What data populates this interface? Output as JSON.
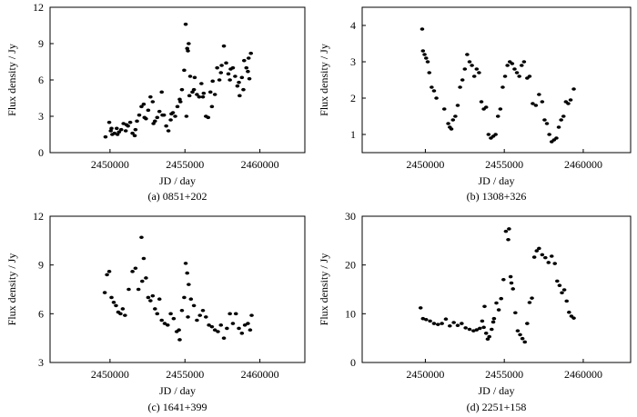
{
  "chart_data": [
    {
      "type": "scatter",
      "panel": "a",
      "caption": "(a) 0851+202",
      "xlabel": "JD / day",
      "ylabel": "Flux density / Jy",
      "xlim": [
        2446000,
        2463000
      ],
      "ylim": [
        0,
        12
      ],
      "xticks": [
        2450000,
        2455000,
        2460000
      ],
      "xtick_labels": [
        "2450000",
        "2455000",
        "2460000"
      ],
      "yticks": [
        0,
        3,
        6,
        9,
        12
      ],
      "ytick_labels": [
        "0",
        "3",
        "6",
        "9",
        "12"
      ],
      "x": [
        2449700,
        2449950,
        2450050,
        2450150,
        2450300,
        2450450,
        2450600,
        2450750,
        2450900,
        2451050,
        2451200,
        2451350,
        2451500,
        2451650,
        2451800,
        2451950,
        2452100,
        2452250,
        2452400,
        2452550,
        2452700,
        2452850,
        2453000,
        2453150,
        2453300,
        2453450,
        2453600,
        2453750,
        2453900,
        2454050,
        2454200,
        2454350,
        2454500,
        2454650,
        2454800,
        2454950,
        2455050,
        2455150,
        2455250,
        2455350,
        2455500,
        2455650,
        2455800,
        2455950,
        2456100,
        2456250,
        2456400,
        2456550,
        2456700,
        2456850,
        2457000,
        2457150,
        2457300,
        2457450,
        2457600,
        2457750,
        2457900,
        2458050,
        2458200,
        2458350,
        2458500,
        2458650,
        2458800,
        2458950,
        2459100,
        2459250,
        2459400,
        2450100,
        2450500,
        2451100,
        2451700,
        2452300,
        2452900,
        2453500,
        2454100,
        2454700,
        2455100,
        2455600,
        2456200,
        2456800,
        2457400,
        2458000,
        2458600,
        2459200,
        2459300,
        2458900,
        2455200,
        2455300
      ],
      "values": [
        1.3,
        2.5,
        1.8,
        1.5,
        1.6,
        2.0,
        1.7,
        1.9,
        2.4,
        1.8,
        2.2,
        2.5,
        1.6,
        1.4,
        2.6,
        3.1,
        3.8,
        4.0,
        2.8,
        3.5,
        4.6,
        4.2,
        2.6,
        2.9,
        3.4,
        5.0,
        3.1,
        2.2,
        1.8,
        2.7,
        3.3,
        3.0,
        3.8,
        4.4,
        5.2,
        6.8,
        10.6,
        8.6,
        9.0,
        6.3,
        5.0,
        6.2,
        4.8,
        4.6,
        5.7,
        4.9,
        3.0,
        2.9,
        5.0,
        5.9,
        4.8,
        7.0,
        6.0,
        7.2,
        8.8,
        7.4,
        6.5,
        6.9,
        7.0,
        6.3,
        5.5,
        4.7,
        6.2,
        7.6,
        7.0,
        7.8,
        8.2,
        2.0,
        1.5,
        2.3,
        1.9,
        2.9,
        2.4,
        3.1,
        3.2,
        4.2,
        3.0,
        5.2,
        4.6,
        3.8,
        6.6,
        6.0,
        5.8,
        6.7,
        6.1,
        5.2,
        8.4,
        4.7
      ]
    },
    {
      "type": "scatter",
      "panel": "b",
      "caption": "(b) 1308+326",
      "xlabel": "JD / day",
      "ylabel": "Flux density / Jy",
      "xlim": [
        2446000,
        2463000
      ],
      "ylim": [
        0.5,
        4.5
      ],
      "xticks": [
        2450000,
        2455000,
        2460000
      ],
      "xtick_labels": [
        "2450000",
        "2455000",
        "2460000"
      ],
      "yticks": [
        1,
        2,
        3,
        4
      ],
      "ytick_labels": [
        "1",
        "2",
        "3",
        "4"
      ],
      "x": [
        2449800,
        2449850,
        2449950,
        2450050,
        2450150,
        2450250,
        2450400,
        2450550,
        2450700,
        2451200,
        2451450,
        2451550,
        2451650,
        2451750,
        2451900,
        2452050,
        2452200,
        2452350,
        2452500,
        2452650,
        2452800,
        2452950,
        2453100,
        2453250,
        2453400,
        2453550,
        2453700,
        2453850,
        2454000,
        2454150,
        2454300,
        2454450,
        2454600,
        2454750,
        2454900,
        2455050,
        2455200,
        2455350,
        2455500,
        2455650,
        2455800,
        2455950,
        2456100,
        2456250,
        2456450,
        2456600,
        2456800,
        2457000,
        2457200,
        2457400,
        2457550,
        2457700,
        2457850,
        2458000,
        2458150,
        2458300,
        2458450,
        2458600,
        2458750,
        2458900,
        2459050,
        2459200,
        2459400
      ],
      "values": [
        3.9,
        3.3,
        3.2,
        3.1,
        3.0,
        2.7,
        2.3,
        2.2,
        2.0,
        1.7,
        1.3,
        1.2,
        1.15,
        1.4,
        1.5,
        1.8,
        2.3,
        2.5,
        2.8,
        3.2,
        3.0,
        2.9,
        2.6,
        2.8,
        2.7,
        1.9,
        1.7,
        1.75,
        1.0,
        0.9,
        0.95,
        1.0,
        1.5,
        1.7,
        2.3,
        2.6,
        2.9,
        3.0,
        2.95,
        2.8,
        2.7,
        2.6,
        2.9,
        3.0,
        2.55,
        2.6,
        1.85,
        1.8,
        2.1,
        1.9,
        1.4,
        1.3,
        1.0,
        0.8,
        0.85,
        0.9,
        1.2,
        1.4,
        1.5,
        1.9,
        1.85,
        1.95,
        2.25
      ]
    },
    {
      "type": "scatter",
      "panel": "c",
      "caption": "(c) 1641+399",
      "xlabel": "JD / day",
      "ylabel": "Flux density / Jy",
      "xlim": [
        2446000,
        2463000
      ],
      "ylim": [
        3,
        12
      ],
      "xticks": [
        2450000,
        2455000,
        2460000
      ],
      "xtick_labels": [
        "2450000",
        "2455000",
        "2460000"
      ],
      "yticks": [
        3,
        6,
        9,
        12
      ],
      "ytick_labels": [
        "3",
        "6",
        "9",
        "12"
      ],
      "x": [
        2449650,
        2449800,
        2449950,
        2450100,
        2450250,
        2450400,
        2450550,
        2450700,
        2450850,
        2451000,
        2451250,
        2451500,
        2451700,
        2451900,
        2452100,
        2452250,
        2452400,
        2452550,
        2452700,
        2452850,
        2453000,
        2453150,
        2453300,
        2453450,
        2453650,
        2453850,
        2454050,
        2454250,
        2454450,
        2454650,
        2454800,
        2454950,
        2455050,
        2455150,
        2455250,
        2455400,
        2455600,
        2455800,
        2456000,
        2456200,
        2456400,
        2456600,
        2456800,
        2457000,
        2457200,
        2457400,
        2457600,
        2457800,
        2458000,
        2458200,
        2458400,
        2458600,
        2458800,
        2459000,
        2459200,
        2459350,
        2459450,
        2452150,
        2454600,
        2455200
      ],
      "values": [
        7.3,
        8.4,
        8.6,
        7.0,
        6.7,
        6.5,
        6.1,
        6.0,
        6.3,
        5.9,
        7.5,
        8.6,
        8.8,
        7.5,
        10.7,
        9.4,
        8.2,
        7.0,
        6.8,
        7.1,
        6.3,
        6.0,
        6.9,
        5.6,
        5.4,
        5.3,
        6.0,
        5.7,
        4.9,
        4.4,
        6.2,
        7.0,
        9.1,
        8.5,
        7.8,
        6.9,
        6.5,
        5.6,
        5.9,
        6.2,
        5.8,
        5.3,
        5.2,
        5.0,
        4.9,
        5.3,
        4.5,
        5.1,
        6.0,
        5.4,
        6.0,
        5.1,
        4.8,
        5.3,
        5.4,
        5.0,
        5.9,
        8.0,
        5.0,
        5.8
      ]
    },
    {
      "type": "scatter",
      "panel": "d",
      "caption": "(d) 2251+158",
      "xlabel": "JD / day",
      "ylabel": "Flux density / Jy",
      "xlim": [
        2446000,
        2463000
      ],
      "ylim": [
        0,
        30
      ],
      "xticks": [
        2450000,
        2455000,
        2460000
      ],
      "xtick_labels": [
        "2450000",
        "2455000",
        "2460000"
      ],
      "yticks": [
        0,
        10,
        20,
        30
      ],
      "ytick_labels": [
        "0",
        "10",
        "20",
        "30"
      ],
      "x": [
        2449700,
        2449850,
        2450050,
        2450300,
        2450550,
        2450800,
        2451050,
        2451300,
        2451550,
        2451800,
        2452050,
        2452300,
        2452550,
        2452800,
        2453050,
        2453250,
        2453450,
        2453600,
        2453750,
        2453850,
        2453950,
        2454050,
        2454200,
        2454350,
        2454500,
        2454650,
        2454800,
        2454950,
        2455100,
        2455250,
        2455400,
        2455550,
        2455700,
        2455850,
        2456000,
        2456150,
        2456300,
        2456450,
        2456600,
        2456750,
        2456900,
        2457050,
        2457200,
        2457400,
        2457600,
        2457800,
        2458000,
        2458200,
        2458350,
        2458500,
        2458650,
        2458800,
        2458950,
        2459100,
        2459250,
        2459400,
        2455300,
        2455450,
        2453700,
        2454300
      ],
      "values": [
        11.2,
        9.0,
        8.8,
        8.5,
        8.0,
        7.8,
        8.0,
        8.9,
        7.5,
        8.2,
        7.6,
        8.0,
        7.1,
        6.8,
        6.5,
        6.7,
        7.0,
        8.5,
        11.5,
        6.0,
        4.8,
        5.3,
        6.8,
        9.0,
        12.2,
        10.8,
        13.1,
        17.0,
        26.9,
        25.2,
        17.6,
        15.1,
        10.2,
        6.5,
        5.7,
        4.9,
        4.2,
        8.0,
        12.3,
        13.2,
        21.6,
        22.9,
        23.4,
        22.1,
        21.5,
        20.5,
        21.8,
        20.3,
        16.7,
        15.8,
        14.3,
        14.9,
        12.6,
        10.3,
        9.5,
        9.1,
        27.4,
        16.3,
        7.2,
        8.3
      ]
    }
  ]
}
